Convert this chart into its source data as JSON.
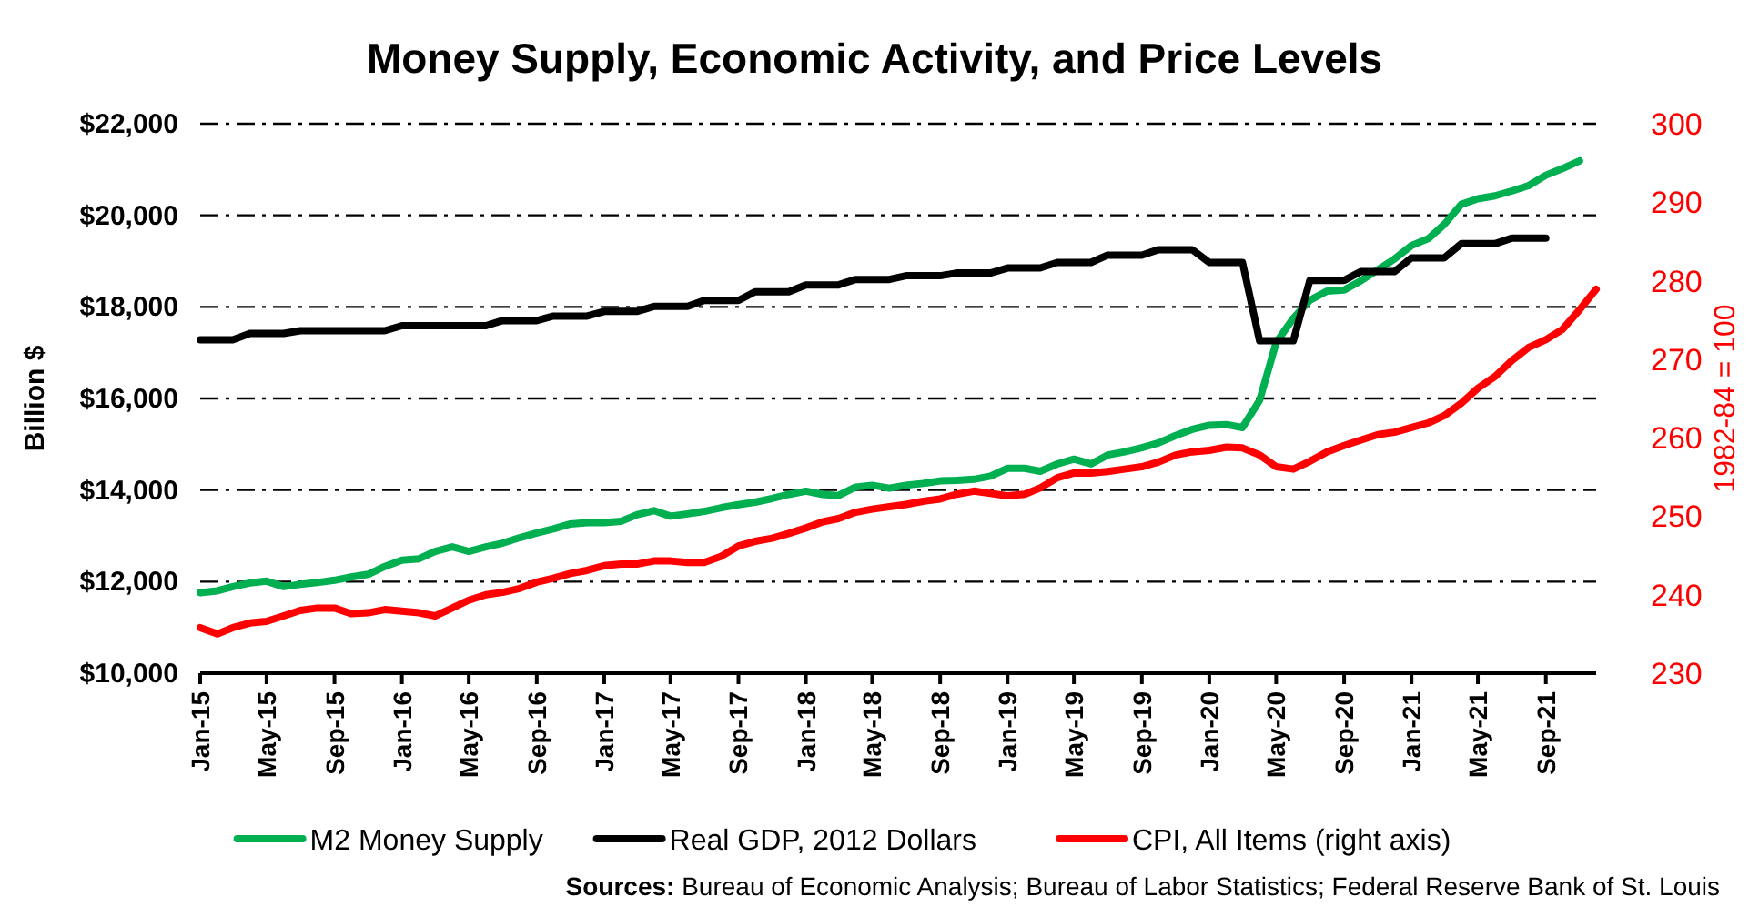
{
  "chart_data": {
    "type": "line",
    "title": "Money Supply, Economic Activity, and Price Levels",
    "ylabel": "Billion $",
    "y2label": "1982-84 = 100",
    "x": [
      "2015-01",
      "2015-02",
      "2015-03",
      "2015-04",
      "2015-05",
      "2015-06",
      "2015-07",
      "2015-08",
      "2015-09",
      "2015-10",
      "2015-11",
      "2015-12",
      "2016-01",
      "2016-02",
      "2016-03",
      "2016-04",
      "2016-05",
      "2016-06",
      "2016-07",
      "2016-08",
      "2016-09",
      "2016-10",
      "2016-11",
      "2016-12",
      "2017-01",
      "2017-02",
      "2017-03",
      "2017-04",
      "2017-05",
      "2017-06",
      "2017-07",
      "2017-08",
      "2017-09",
      "2017-10",
      "2017-11",
      "2017-12",
      "2018-01",
      "2018-02",
      "2018-03",
      "2018-04",
      "2018-05",
      "2018-06",
      "2018-07",
      "2018-08",
      "2018-09",
      "2018-10",
      "2018-11",
      "2018-12",
      "2019-01",
      "2019-02",
      "2019-03",
      "2019-04",
      "2019-05",
      "2019-06",
      "2019-07",
      "2019-08",
      "2019-09",
      "2019-10",
      "2019-11",
      "2019-12",
      "2020-01",
      "2020-02",
      "2020-03",
      "2020-04",
      "2020-05",
      "2020-06",
      "2020-07",
      "2020-08",
      "2020-09",
      "2020-10",
      "2020-11",
      "2020-12",
      "2021-01",
      "2021-02",
      "2021-03",
      "2021-04",
      "2021-05",
      "2021-06",
      "2021-07",
      "2021-08",
      "2021-09",
      "2021-10",
      "2021-11",
      "2021-12"
    ],
    "series": [
      {
        "name": "M2 Money Supply",
        "color": "#00b050",
        "values": [
          11760,
          11800,
          11890,
          11970,
          12010,
          11890,
          11940,
          11980,
          12030,
          12100,
          12160,
          12330,
          12470,
          12500,
          12660,
          12760,
          12660,
          12760,
          12840,
          12960,
          13060,
          13150,
          13260,
          13290,
          13290,
          13320,
          13460,
          13550,
          13430,
          13480,
          13535,
          13615,
          13680,
          13735,
          13815,
          13905,
          13975,
          13905,
          13880,
          14065,
          14105,
          14040,
          14105,
          14145,
          14200,
          14210,
          14235,
          14305,
          14475,
          14475,
          14410,
          14570,
          14675,
          14570,
          14765,
          14835,
          14925,
          15030,
          15190,
          15325,
          15415,
          15430,
          15365,
          15960,
          17220,
          17750,
          18145,
          18345,
          18370,
          18570,
          18810,
          19045,
          19340,
          19495,
          19800,
          20240,
          20360,
          20425,
          20530,
          20650,
          20875,
          21020,
          21190,
          null
        ]
      },
      {
        "name": "Real GDP, 2012 Dollars",
        "color": "#000000",
        "values": [
          17280,
          17280,
          17280,
          17420,
          17420,
          17420,
          17480,
          17480,
          17480,
          17480,
          17480,
          17480,
          17590,
          17590,
          17590,
          17590,
          17590,
          17590,
          17700,
          17700,
          17700,
          17800,
          17800,
          17800,
          17900,
          17900,
          17900,
          18010,
          18010,
          18010,
          18140,
          18140,
          18140,
          18330,
          18330,
          18330,
          18480,
          18480,
          18480,
          18600,
          18600,
          18600,
          18680,
          18680,
          18680,
          18740,
          18740,
          18740,
          18850,
          18850,
          18850,
          18970,
          18970,
          18970,
          19130,
          19130,
          19130,
          19250,
          19250,
          19250,
          18970,
          18970,
          18970,
          17260,
          17260,
          17260,
          18580,
          18580,
          18580,
          18770,
          18770,
          18770,
          19070,
          19070,
          19070,
          19380,
          19380,
          19380,
          19500,
          19500,
          19500,
          null,
          null,
          null
        ]
      },
      {
        "name": "CPI, All Items (right axis)",
        "color": "#ff0000",
        "axis": "y2",
        "values": [
          235.8,
          235.0,
          235.8,
          236.4,
          236.6,
          237.3,
          238.0,
          238.3,
          238.3,
          237.6,
          237.7,
          238.1,
          237.9,
          237.7,
          237.3,
          238.3,
          239.3,
          240.0,
          240.3,
          240.8,
          241.6,
          242.1,
          242.7,
          243.1,
          243.7,
          243.9,
          243.9,
          244.3,
          244.3,
          244.1,
          244.1,
          244.9,
          246.2,
          246.8,
          247.2,
          247.8,
          248.5,
          249.3,
          249.7,
          250.5,
          250.9,
          251.2,
          251.5,
          251.9,
          252.2,
          252.8,
          253.2,
          252.9,
          252.6,
          252.8,
          253.6,
          254.9,
          255.5,
          255.5,
          255.7,
          256.0,
          256.3,
          256.9,
          257.8,
          258.2,
          258.4,
          258.8,
          258.7,
          257.8,
          256.3,
          256.0,
          257.0,
          258.2,
          259.0,
          259.7,
          260.4,
          260.7,
          261.3,
          261.9,
          262.8,
          264.4,
          266.3,
          267.8,
          269.8,
          271.5,
          272.5,
          273.8,
          276.3,
          278.9
        ]
      }
    ],
    "xlim": [
      "2015-01",
      "2021-12"
    ],
    "xticks": [
      {
        "value": "2015-01",
        "label": "Jan-15"
      },
      {
        "value": "2015-05",
        "label": "May-15"
      },
      {
        "value": "2015-09",
        "label": "Sep-15"
      },
      {
        "value": "2016-01",
        "label": "Jan-16"
      },
      {
        "value": "2016-05",
        "label": "May-16"
      },
      {
        "value": "2016-09",
        "label": "Sep-16"
      },
      {
        "value": "2017-01",
        "label": "Jan-17"
      },
      {
        "value": "2017-05",
        "label": "May-17"
      },
      {
        "value": "2017-09",
        "label": "Sep-17"
      },
      {
        "value": "2018-01",
        "label": "Jan-18"
      },
      {
        "value": "2018-05",
        "label": "May-18"
      },
      {
        "value": "2018-09",
        "label": "Sep-18"
      },
      {
        "value": "2019-01",
        "label": "Jan-19"
      },
      {
        "value": "2019-05",
        "label": "May-19"
      },
      {
        "value": "2019-09",
        "label": "Sep-19"
      },
      {
        "value": "2020-01",
        "label": "Jan-20"
      },
      {
        "value": "2020-05",
        "label": "May-20"
      },
      {
        "value": "2020-09",
        "label": "Sep-20"
      },
      {
        "value": "2021-01",
        "label": "Jan-21"
      },
      {
        "value": "2021-05",
        "label": "May-21"
      },
      {
        "value": "2021-09",
        "label": "Sep-21"
      }
    ],
    "ylim": [
      10000,
      22000
    ],
    "yticks": [
      {
        "value": 10000,
        "label": "$10,000"
      },
      {
        "value": 12000,
        "label": "$12,000"
      },
      {
        "value": 14000,
        "label": "$14,000"
      },
      {
        "value": 16000,
        "label": "$16,000"
      },
      {
        "value": 18000,
        "label": "$18,000"
      },
      {
        "value": 20000,
        "label": "$20,000"
      },
      {
        "value": 22000,
        "label": "$22,000"
      }
    ],
    "y2lim": [
      230,
      300
    ],
    "y2ticks": [
      230,
      240,
      250,
      260,
      270,
      280,
      290,
      300
    ],
    "grid": "y",
    "legend": "bottom",
    "line_style": "solid",
    "marker": "none",
    "annotations": [
      "Sources: Bureau of Economic Analysis; Bureau of Labor Statistics; Federal Reserve Bank of St. Louis"
    ]
  }
}
